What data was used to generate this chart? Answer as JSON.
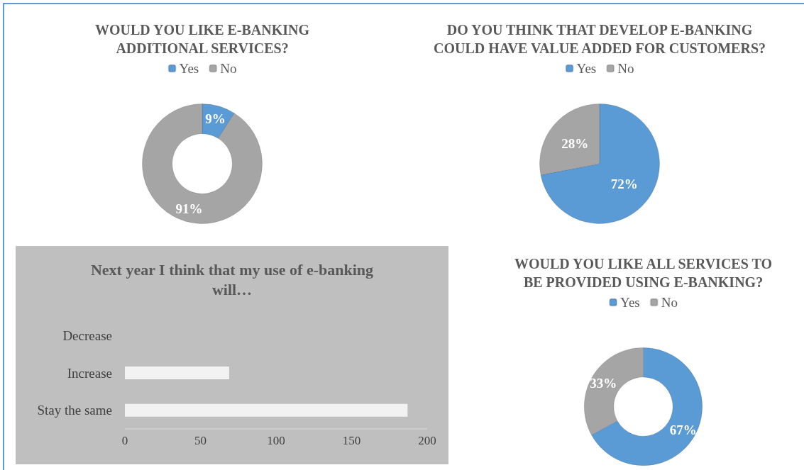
{
  "chart_data": [
    {
      "type": "donut",
      "title": "WOULD YOU LIKE E-BANKING\nADDITIONAL SERVICES?",
      "categories": [
        "Yes",
        "No"
      ],
      "values": [
        9,
        91
      ],
      "colors": [
        "#5b9bd5",
        "#a5a5a5"
      ],
      "value_labels": [
        "9%",
        "91%"
      ],
      "legend": "top"
    },
    {
      "type": "pie",
      "title": "DO YOU THINK THAT DEVELOP E-BANKING\nCOULD HAVE VALUE ADDED FOR CUSTOMERS?",
      "categories": [
        "Yes",
        "No"
      ],
      "values": [
        72,
        28
      ],
      "colors": [
        "#5b9bd5",
        "#a5a5a5"
      ],
      "value_labels": [
        "72%",
        "28%"
      ],
      "legend": "top"
    },
    {
      "type": "bar",
      "title": "Next year I think that my use of e-banking\nwill…",
      "orientation": "horizontal",
      "categories": [
        "Decrease",
        "Increase",
        "Stay the same"
      ],
      "values": [
        0,
        69,
        187
      ],
      "color": "#f2f2f2",
      "xlim": [
        0,
        200
      ],
      "xticks": [
        0,
        50,
        100,
        150,
        200
      ],
      "grid": false,
      "legend": false
    },
    {
      "type": "donut",
      "title": "WOULD YOU LIKE ALL SERVICES TO\nBE PROVIDED USING E-BANKING?",
      "categories": [
        "Yes",
        "No"
      ],
      "values": [
        67,
        33
      ],
      "colors": [
        "#5b9bd5",
        "#a5a5a5"
      ],
      "value_labels": [
        "67%",
        "33%"
      ],
      "legend": "top"
    }
  ]
}
